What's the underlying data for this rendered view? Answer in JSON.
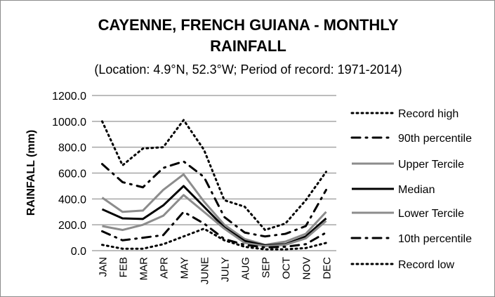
{
  "chart_data": {
    "type": "line",
    "title_line1": "CAYENNE, FRENCH GUIANA - MONTHLY",
    "title_line2": "RAINFALL",
    "subtitle": "(Location: 4.9°N, 52.3°W; Period of record: 1971-2014)",
    "ylabel": "RAINFALL (mm)",
    "xlabel": "",
    "ylim": [
      0,
      1200
    ],
    "yticks": [
      "0.0",
      "200.0",
      "400.0",
      "600.0",
      "800.0",
      "1000.0",
      "1200.0"
    ],
    "categories": [
      "JAN",
      "FEB",
      "MAR",
      "APR",
      "MAY",
      "JUNE",
      "JULY",
      "AUG",
      "SEP",
      "OCT",
      "NOV",
      "DEC"
    ],
    "grid": true,
    "legend_position": "right",
    "series": [
      {
        "name": "Record high",
        "style": "dotted",
        "color": "#000000",
        "values": [
          1000,
          660,
          790,
          800,
          1010,
          780,
          390,
          340,
          160,
          210,
          390,
          610
        ]
      },
      {
        "name": "90th percentile",
        "style": "dashdot",
        "color": "#000000",
        "values": [
          670,
          530,
          490,
          640,
          690,
          570,
          260,
          140,
          110,
          130,
          190,
          470
        ]
      },
      {
        "name": "Upper Tercile",
        "style": "solid",
        "color": "#8c8c8c",
        "values": [
          410,
          300,
          310,
          470,
          590,
          380,
          200,
          90,
          45,
          70,
          130,
          300
        ]
      },
      {
        "name": "Median",
        "style": "solid",
        "color": "#000000",
        "values": [
          320,
          250,
          245,
          350,
          500,
          340,
          180,
          75,
          40,
          50,
          110,
          250
        ]
      },
      {
        "name": "Lower Tercile",
        "style": "solid",
        "color": "#8c8c8c",
        "values": [
          190,
          160,
          200,
          270,
          430,
          300,
          170,
          60,
          35,
          45,
          95,
          230
        ]
      },
      {
        "name": "10th percentile",
        "style": "dashdot",
        "color": "#000000",
        "values": [
          150,
          80,
          100,
          120,
          300,
          210,
          90,
          45,
          25,
          30,
          50,
          140
        ]
      },
      {
        "name": "Record low",
        "style": "dotted",
        "color": "#000000",
        "values": [
          45,
          15,
          15,
          50,
          110,
          170,
          80,
          30,
          10,
          10,
          20,
          60
        ]
      }
    ]
  }
}
